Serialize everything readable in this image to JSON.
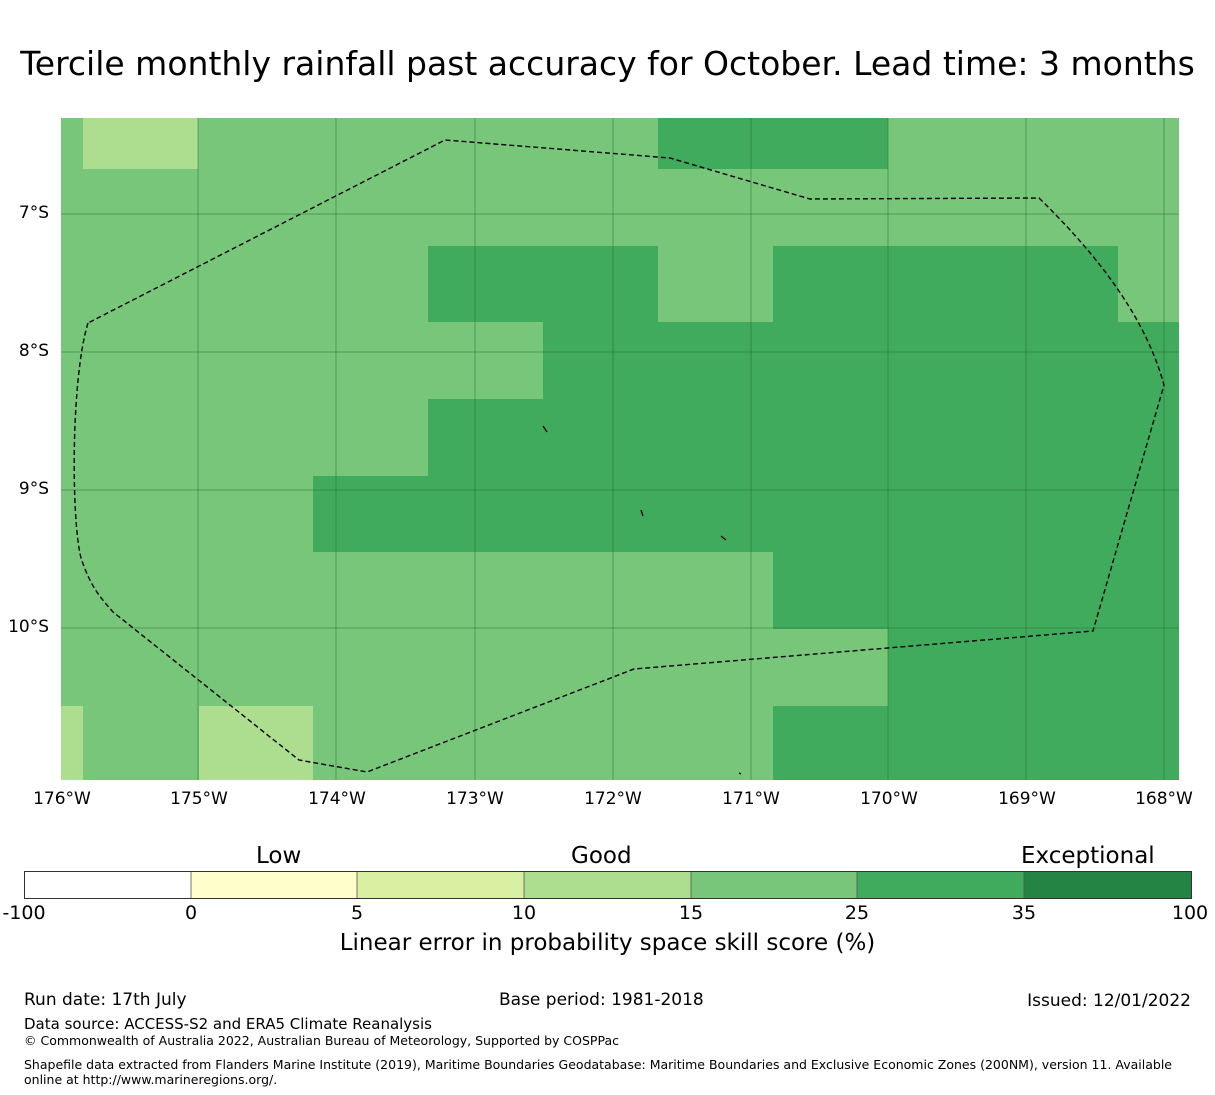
{
  "title": "Tercile monthly rainfall past accuracy for October. Lead time: 3 months",
  "map": {
    "lon_range": [
      -176.0,
      -168.0
    ],
    "lat_range": [
      -11.15,
      -6.3
    ],
    "lat_ticks": [
      "7°S",
      "8°S",
      "9°S",
      "10°S"
    ],
    "lon_ticks": [
      "176°W",
      "175°W",
      "174°W",
      "173°W",
      "172°W",
      "171°W",
      "170°W",
      "169°W",
      "168°W"
    ],
    "gridlines": true,
    "boundary": "dashed",
    "colors": {
      "c15_25": "#78c679",
      "c25_35": "#41ab5d",
      "c10_15": "#addd8e"
    }
  },
  "colorbar": {
    "categories": [
      "Low",
      "Good",
      "Exceptional"
    ],
    "ticks": [
      "-100",
      "0",
      "5",
      "10",
      "15",
      "25",
      "35",
      "100"
    ],
    "colors": [
      "#ffffff",
      "#ffffcc",
      "#d9f0a3",
      "#addd8e",
      "#78c679",
      "#41ab5d",
      "#238443"
    ],
    "label": "Linear error in probability space skill score (%)"
  },
  "footer": {
    "run_date": "Run date: 17th July",
    "base_period": "Base period: 1981-2018",
    "issued": "Issued: 12/01/2022",
    "data_source": "Data source: ACCESS-S2 and ERA5 Climate Reanalysis",
    "copyright": "© Commonwealth of Australia 2022, Australian Bureau of Meteorology, Supported by COSPPac",
    "shapefile": "Shapefile data extracted from Flanders Marine Institute (2019), Maritime Boundaries Geodatabase: Maritime Boundaries and Exclusive Economic Zones (200NM), version 11. Available online at http://www.marineregions.org/."
  }
}
